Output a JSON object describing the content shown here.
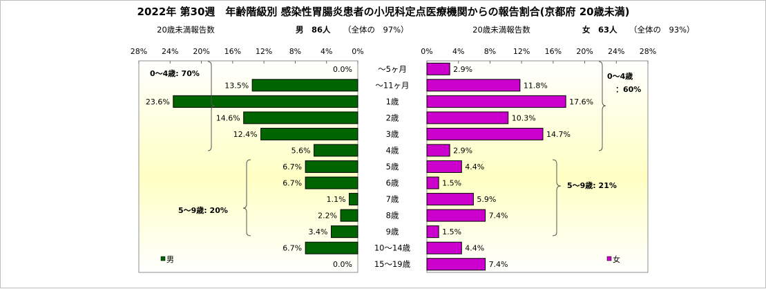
{
  "chart_data": {
    "type": "bar",
    "title": "2022年 第30週　年齢階級別 感染性胃腸炎患者の小児科定点医療機関からの報告割合(京都府 20歳未満)",
    "categories": [
      "～5ヶ月",
      "～11ヶ月",
      "1歳",
      "2歳",
      "3歳",
      "4歳",
      "5歳",
      "6歳",
      "7歳",
      "8歳",
      "9歳",
      "10～14歳",
      "15～19歳"
    ],
    "xlim": [
      0,
      28
    ],
    "ticks": [
      0,
      4,
      8,
      12,
      16,
      20,
      24,
      28
    ],
    "tick_suffix": "%",
    "series": [
      {
        "name": "男",
        "color": "#006400",
        "values": [
          0.0,
          13.5,
          23.6,
          14.6,
          12.4,
          5.6,
          6.7,
          6.7,
          1.1,
          2.2,
          3.4,
          6.7,
          0.0
        ],
        "value_labels": [
          "0.0%",
          "13.5%",
          "23.6%",
          "14.6%",
          "12.4%",
          "5.6%",
          "6.7%",
          "6.7%",
          "1.1%",
          "2.2%",
          "3.4%",
          "6.7%",
          "0.0%"
        ],
        "header": {
          "count_label": "20歳未満報告数",
          "name_count": "男　86人",
          "share": "（全体の　97%）"
        },
        "group_labels": [
          "0～4歳: 70%",
          "5～9歳: 20%"
        ],
        "legend": "男"
      },
      {
        "name": "女",
        "color": "#cc00cc",
        "values": [
          2.9,
          11.8,
          17.6,
          10.3,
          14.7,
          2.9,
          4.4,
          1.5,
          5.9,
          7.4,
          1.5,
          4.4,
          7.4
        ],
        "value_labels": [
          "2.9%",
          "11.8%",
          "17.6%",
          "10.3%",
          "14.7%",
          "2.9%",
          "4.4%",
          "1.5%",
          "5.9%",
          "7.4%",
          "1.5%",
          "4.4%",
          "7.4%"
        ],
        "header": {
          "count_label": "20歳未満報告数",
          "name_count": "女　63人",
          "share": "（全体の　93%）"
        },
        "group_labels": [
          "0～4歳",
          "：60%",
          "5～9歳: 21%"
        ],
        "legend": "女"
      }
    ]
  }
}
